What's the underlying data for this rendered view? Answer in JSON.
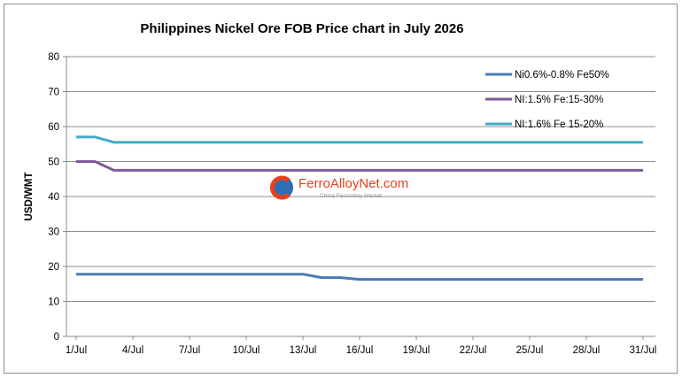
{
  "chart_data": {
    "type": "line",
    "title": "Philippines Nickel Ore FOB Price chart in July 2026",
    "ylabel": "USD/WMT",
    "xlabel": "",
    "ylim": [
      0,
      80
    ],
    "yticks": [
      "0",
      "10",
      "20",
      "30",
      "40",
      "50",
      "60",
      "70",
      "80"
    ],
    "xticks": [
      "1/Jul",
      "4/Jul",
      "7/Jul",
      "10/Jul",
      "13/Jul",
      "16/Jul",
      "19/Jul",
      "22/Jul",
      "25/Jul",
      "28/Jul",
      "31/Jul"
    ],
    "x_day_range": [
      1,
      31
    ],
    "grid": "horizontal",
    "legend_position": "top-right",
    "series": [
      {
        "name": "Ni0.6%-0.8% Fe50%",
        "color": "#4a78b5",
        "points": [
          [
            1,
            17.8
          ],
          [
            13,
            17.8
          ],
          [
            14,
            16.8
          ],
          [
            15,
            16.8
          ],
          [
            16,
            16.3
          ],
          [
            31,
            16.3
          ]
        ]
      },
      {
        "name": "NI:1.5% Fe:15-30%",
        "color": "#7f5a98",
        "points": [
          [
            1,
            50.0
          ],
          [
            2,
            50.0
          ],
          [
            3,
            47.5
          ],
          [
            31,
            47.5
          ]
        ]
      },
      {
        "name": "NI:1.6% Fe 15-20%",
        "color": "#45abc7",
        "points": [
          [
            1,
            57.0
          ],
          [
            2,
            57.0
          ],
          [
            3,
            55.5
          ],
          [
            31,
            55.5
          ]
        ]
      }
    ]
  },
  "watermark": {
    "brand": "FerroAlloyNet.com",
    "tagline": "China FerroAlloy Market",
    "colors": {
      "orange": "#e8401c",
      "blue": "#2f6db5"
    }
  }
}
